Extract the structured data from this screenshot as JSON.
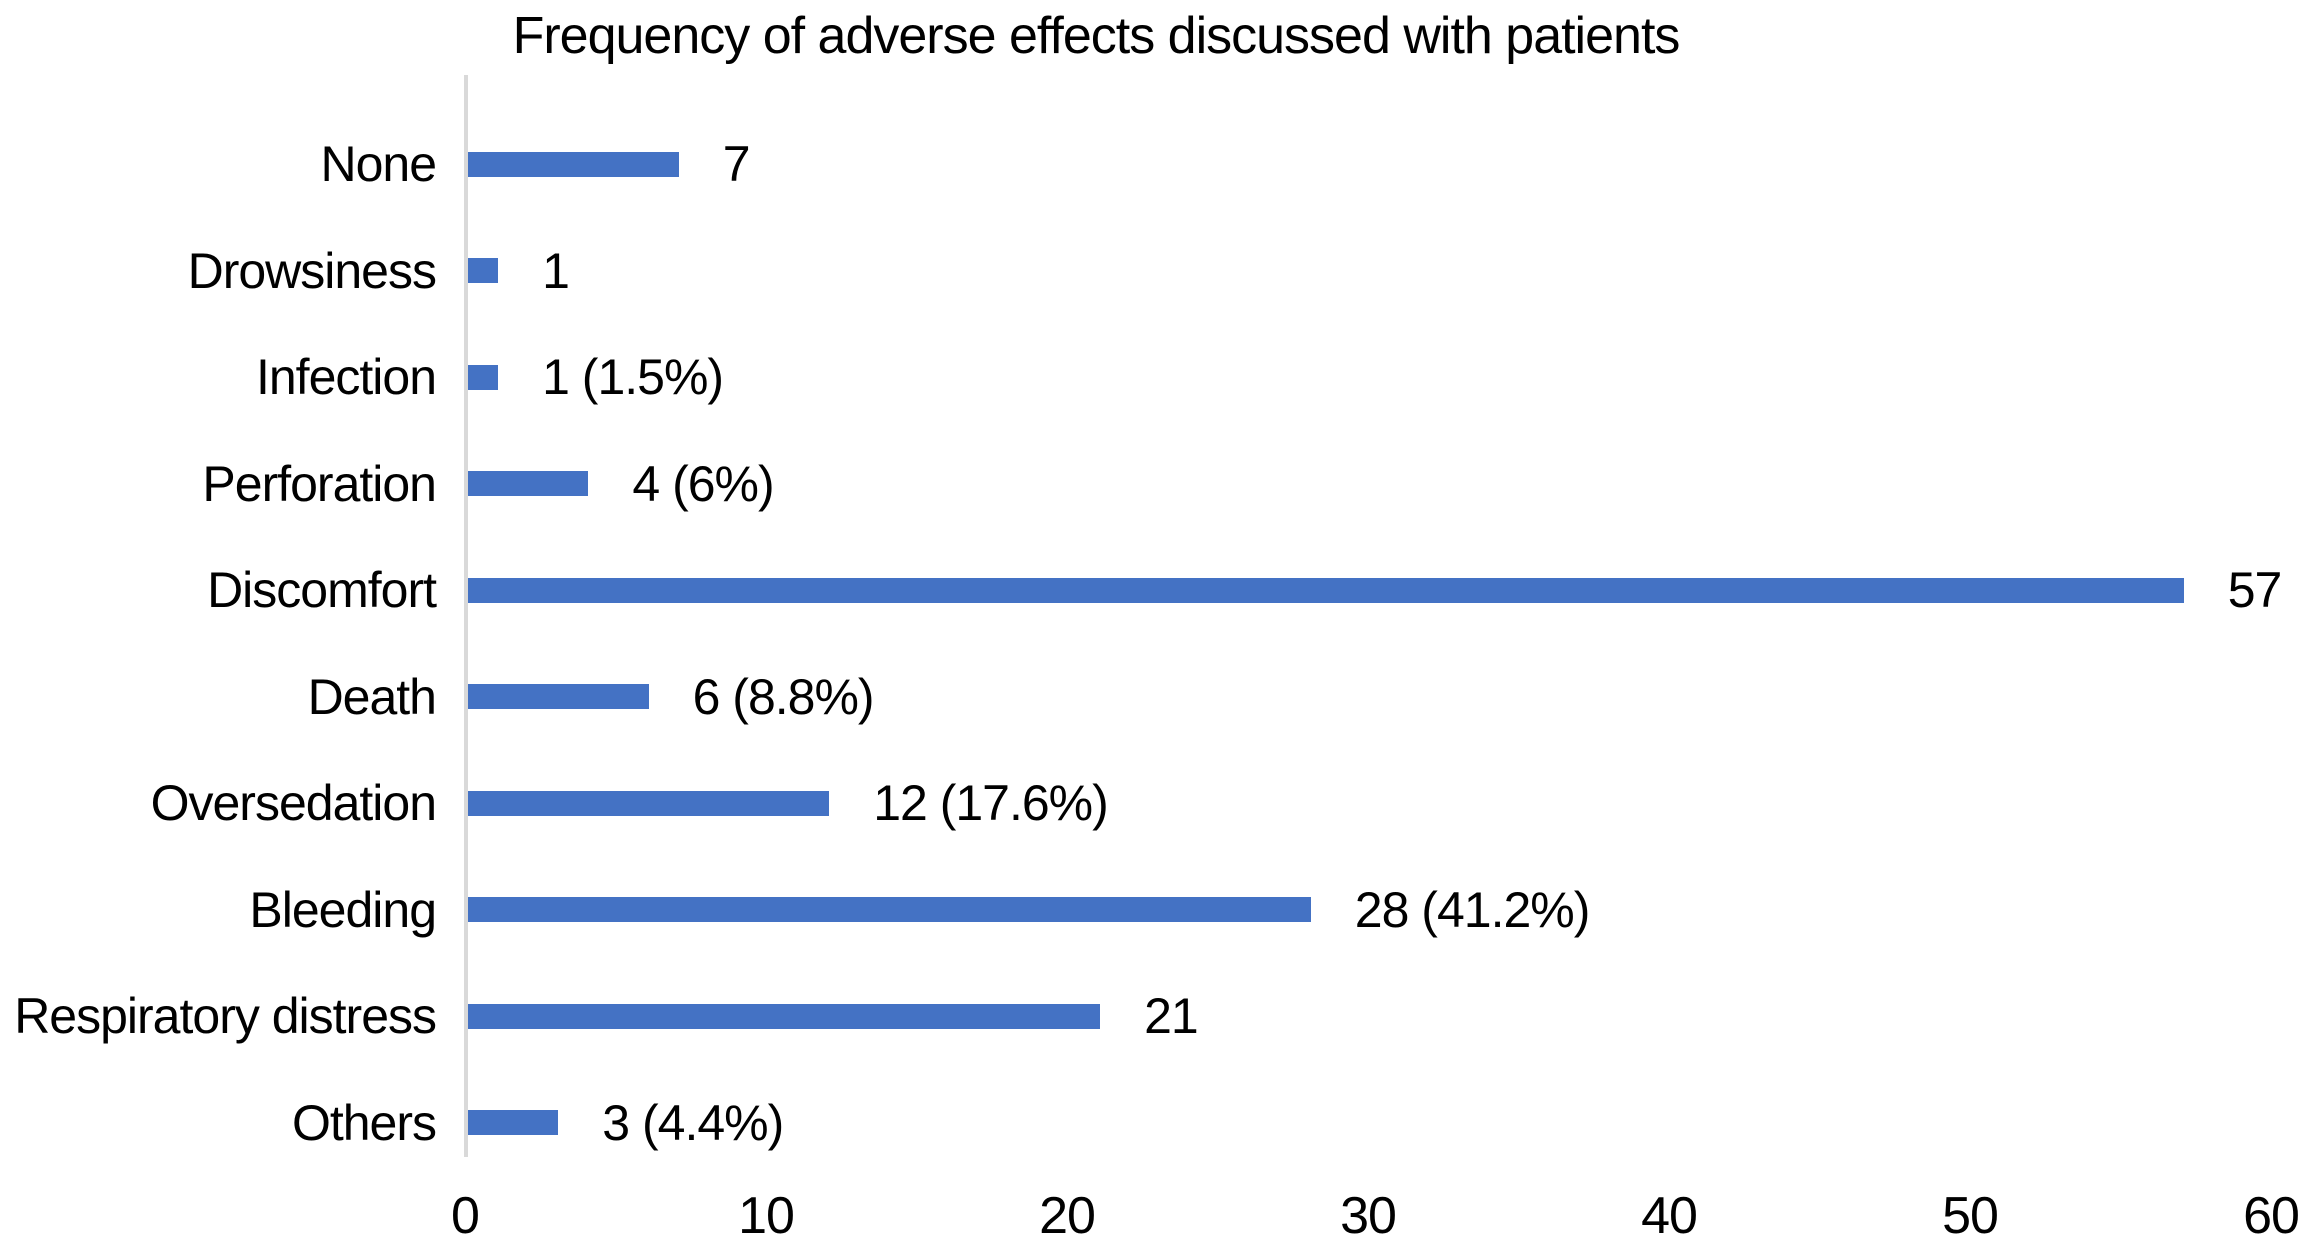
{
  "chart_data": {
    "type": "bar",
    "orientation": "horizontal",
    "title": "Frequency of adverse effects discussed with patients",
    "categories": [
      "None",
      "Drowsiness",
      "Infection",
      "Perforation",
      "Discomfort",
      "Death",
      "Oversedation",
      "Bleeding",
      "Respiratory distress",
      "Others"
    ],
    "values": [
      7,
      1,
      1,
      4,
      57,
      6,
      12,
      28,
      21,
      3
    ],
    "data_labels": [
      "7",
      "1",
      "1 (1.5%)",
      "4 (6%)",
      "57",
      "6 (8.8%)",
      "12 (17.6%)",
      "28 (41.2%)",
      "21",
      "3 (4.4%)"
    ],
    "x_ticks": [
      0,
      10,
      20,
      30,
      40,
      50,
      60
    ],
    "xlim": [
      0,
      60
    ],
    "xlabel": "",
    "ylabel": "",
    "grid": false,
    "legend": false,
    "bar_color": "#4472C4",
    "axis_line_color": "#D9D9D9",
    "text_color": "#000000",
    "background": "#FFFFFF"
  }
}
